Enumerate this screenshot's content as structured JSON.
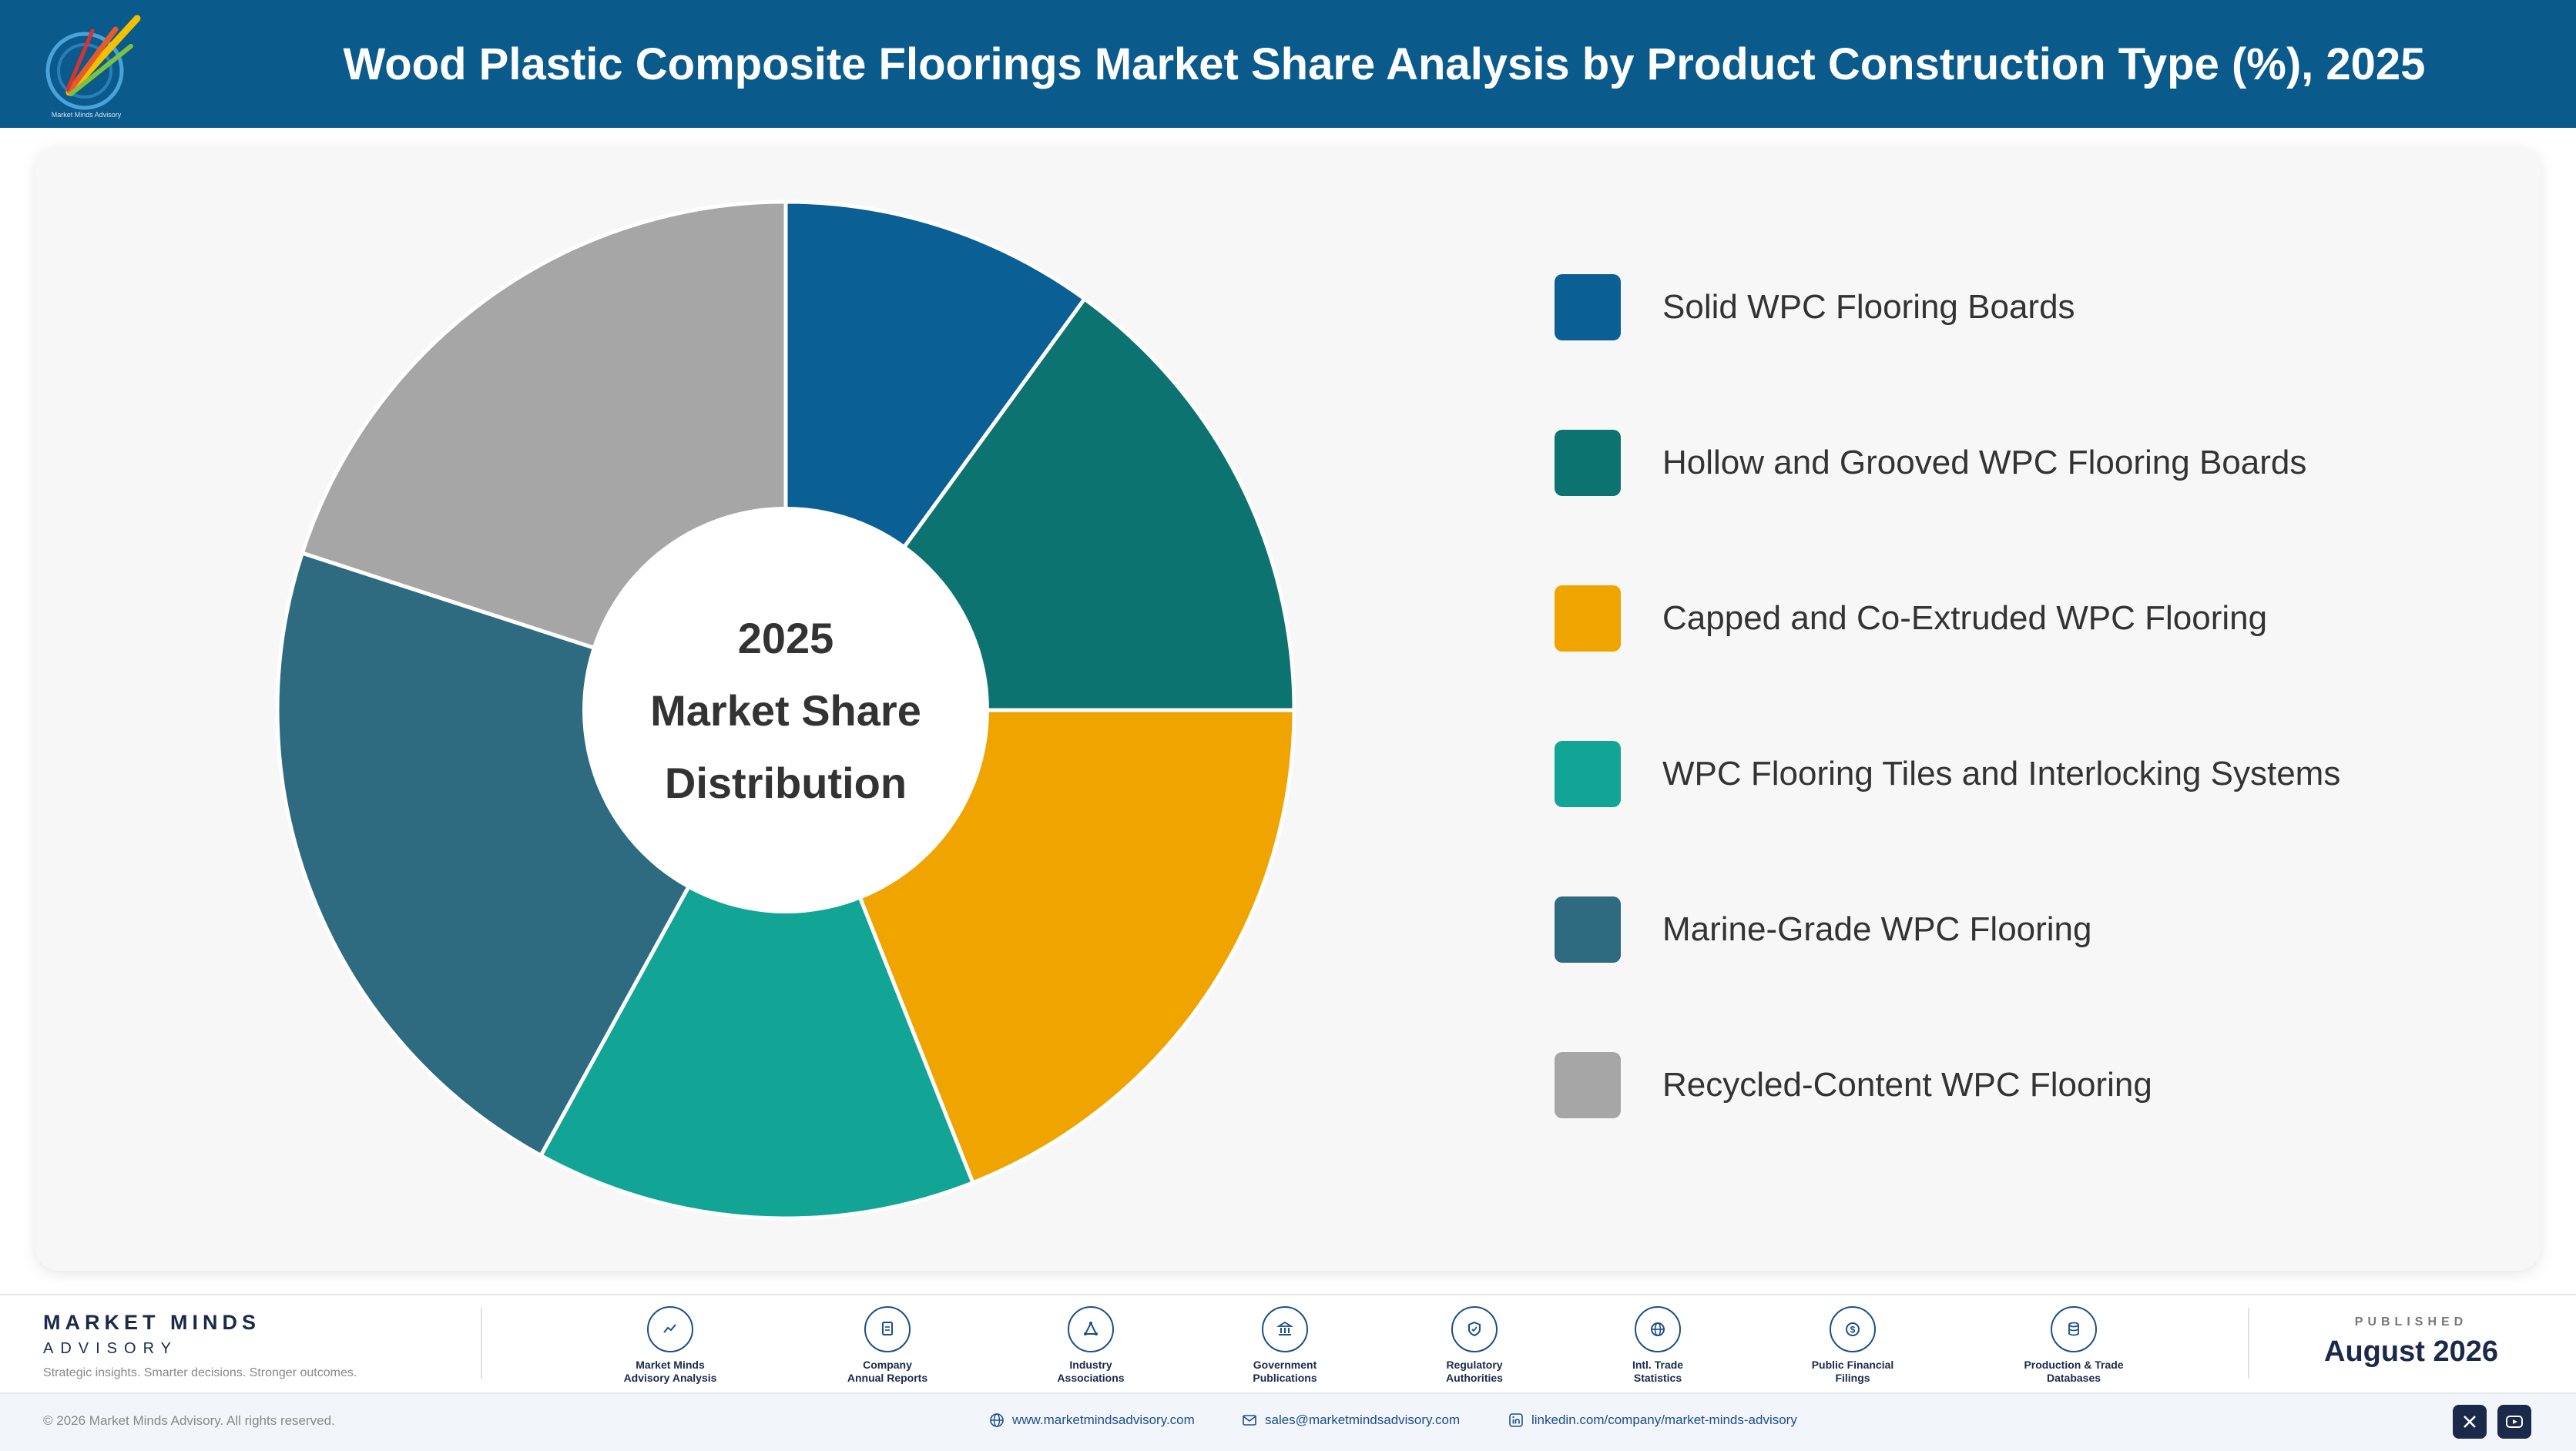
{
  "header": {
    "title": "Wood Plastic Composite Floorings Market Share Analysis by Product Construction Type (%), 2025",
    "logo_tagline": "Market Minds Advisory"
  },
  "chart_data": {
    "type": "pie",
    "donut": true,
    "center_label": [
      "2025",
      "Market Share",
      "Distribution"
    ],
    "categories": [
      "Solid WPC Flooring Boards",
      "Hollow and Grooved WPC Flooring Boards",
      "Capped and Co-Extruded WPC Flooring",
      "WPC Flooring Tiles and Interlocking Systems",
      "Marine-Grade WPC Flooring",
      "Recycled-Content WPC Flooring"
    ],
    "values": [
      10,
      15,
      19,
      14,
      22,
      20
    ],
    "colors": [
      "#0a5f94",
      "#0d7370",
      "#f0a400",
      "#12a596",
      "#2e6b80",
      "#a6a6a6"
    ],
    "legend_position": "right"
  },
  "footer": {
    "brand_name": "MARKET MINDS",
    "brand_sub": "ADVISORY",
    "brand_tagline": "Strategic insights. Smarter decisions. Stronger outcomes.",
    "sources": [
      {
        "line1": "Market Minds",
        "line2": "Advisory Analysis",
        "icon": "chart-line-icon"
      },
      {
        "line1": "Company",
        "line2": "Annual Reports",
        "icon": "document-icon"
      },
      {
        "line1": "Industry",
        "line2": "Associations",
        "icon": "network-icon"
      },
      {
        "line1": "Government",
        "line2": "Publications",
        "icon": "bank-icon"
      },
      {
        "line1": "Regulatory",
        "line2": "Authorities",
        "icon": "shield-icon"
      },
      {
        "line1": "Intl. Trade",
        "line2": "Statistics",
        "icon": "globe-icon"
      },
      {
        "line1": "Public Financial",
        "line2": "Filings",
        "icon": "coin-icon"
      },
      {
        "line1": "Production & Trade",
        "line2": "Databases",
        "icon": "database-icon"
      }
    ],
    "published_label": "PUBLISHED",
    "published_date": "August 2026",
    "copyright": "© 2026 Market Minds Advisory. All rights reserved.",
    "website": "www.marketmindsadvisory.com",
    "email": "sales@marketmindsadvisory.com",
    "linkedin": "linkedin.com/company/market-minds-advisory"
  }
}
